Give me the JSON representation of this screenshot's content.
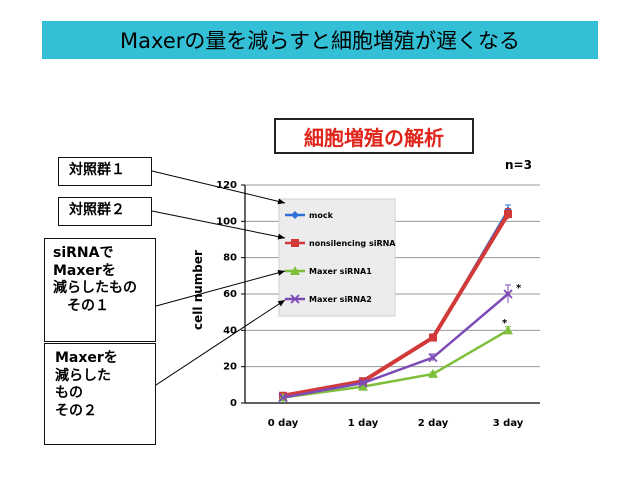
{
  "banner": {
    "title": "Maxerの量を減らすと細胞増殖が遅くなる"
  },
  "subtitle": "細胞増殖の解析",
  "note": "n=3",
  "callouts": [
    "対照群１",
    "対照群２",
    "siRNAで\nMaxerを\n減らしたもの\n　その１",
    "Maxerを\n減らした\nもの\nその２"
  ],
  "colors": {
    "banner": "#33c0d6",
    "subtitle_text": "#e0241b",
    "mock": "#2e6fd6",
    "nonsilencing": "#d23a3a",
    "maxer1": "#7dbf3a",
    "maxer2": "#7d4bb8"
  },
  "chart_data": {
    "type": "line",
    "ylabel": "cell number",
    "xlabel": "",
    "categories": [
      "0 day",
      "1 day",
      "2 day",
      "3 day"
    ],
    "yticks": [
      0,
      20,
      40,
      60,
      80,
      100,
      120
    ],
    "ylim": [
      0,
      120
    ],
    "grid": true,
    "legend_position": "top-left inside plot",
    "series": [
      {
        "name": "mock",
        "values": [
          4,
          12,
          36,
          106
        ],
        "errors": [
          0,
          1,
          2,
          3
        ],
        "color": "#2e6fd6"
      },
      {
        "name": "nonsilencing siRNA",
        "values": [
          4,
          12,
          36,
          104
        ],
        "errors": [
          0,
          1,
          2,
          3
        ],
        "color": "#d23a3a"
      },
      {
        "name": "Maxer siRNA1",
        "values": [
          3,
          9,
          16,
          40
        ],
        "errors": [
          0,
          1,
          1,
          2
        ],
        "color": "#7dbf3a"
      },
      {
        "name": "Maxer siRNA2",
        "values": [
          3,
          11,
          25,
          60
        ],
        "errors": [
          0,
          1,
          2,
          5
        ],
        "color": "#7d4bb8"
      }
    ],
    "annotations": [
      "*",
      "*"
    ]
  }
}
